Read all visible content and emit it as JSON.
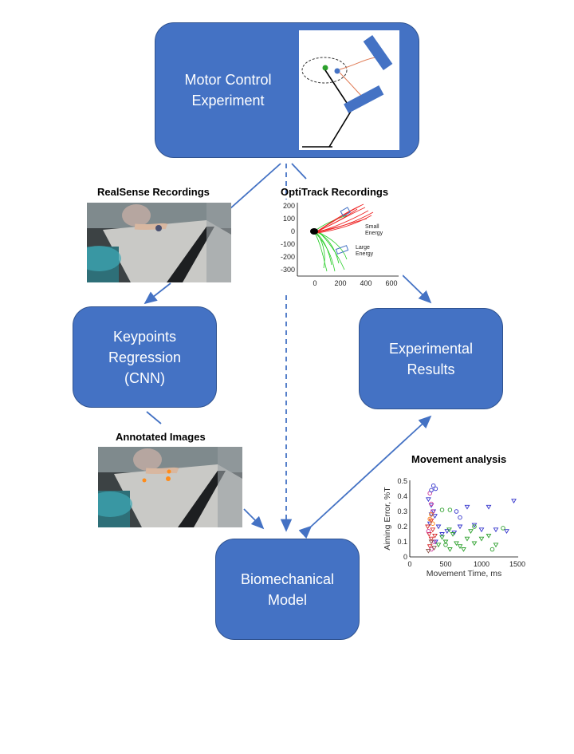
{
  "boxes": {
    "motor": "Motor Control\nExperiment",
    "keypoints": "Keypoints\nRegression\n(CNN)",
    "results": "Experimental\nResults",
    "biomech": "Biomechanical\nModel"
  },
  "captions": {
    "realsense": "RealSense Recordings",
    "optitrack": "OptiTrack Recordings",
    "annotated": "Annotated Images",
    "movement": "Movement analysis"
  },
  "optitrack_plot": {
    "y_ticks": [
      "200",
      "100",
      "0",
      "-100",
      "-200",
      "-300"
    ],
    "x_ticks": [
      "0",
      "200",
      "400",
      "600"
    ],
    "label_small": "Small\nEnergy",
    "label_large": "Large\nEnergy"
  },
  "chart_data": {
    "type": "scatter",
    "title": "Movement analysis",
    "xlabel": "Movement Time, ms",
    "ylabel": "Aiming Error, %T",
    "xlim": [
      0,
      1500
    ],
    "ylim": [
      0,
      0.5
    ],
    "x_ticks": [
      "0",
      "500",
      "1000",
      "1500"
    ],
    "y_ticks": [
      "0",
      "0.1",
      "0.2",
      "0.3",
      "0.4",
      "0.5"
    ],
    "series": [
      {
        "color": "#3333cc",
        "marker": "triangle-down",
        "points": [
          [
            260,
            0.38
          ],
          [
            300,
            0.34
          ],
          [
            330,
            0.3
          ],
          [
            350,
            0.27
          ],
          [
            280,
            0.22
          ],
          [
            400,
            0.2
          ],
          [
            520,
            0.17
          ],
          [
            620,
            0.16
          ],
          [
            700,
            0.2
          ],
          [
            800,
            0.33
          ],
          [
            900,
            0.21
          ],
          [
            1000,
            0.18
          ],
          [
            1100,
            0.33
          ],
          [
            1200,
            0.18
          ],
          [
            1350,
            0.17
          ],
          [
            1450,
            0.37
          ],
          [
            300,
            0.28
          ],
          [
            360,
            0.1
          ],
          [
            450,
            0.15
          ]
        ]
      },
      {
        "color": "#2ca02c",
        "marker": "triangle-down",
        "points": [
          [
            450,
            0.13
          ],
          [
            500,
            0.1
          ],
          [
            560,
            0.05
          ],
          [
            600,
            0.15
          ],
          [
            650,
            0.09
          ],
          [
            700,
            0.07
          ],
          [
            750,
            0.05
          ],
          [
            800,
            0.12
          ],
          [
            850,
            0.17
          ],
          [
            900,
            0.09
          ],
          [
            1000,
            0.12
          ],
          [
            1100,
            0.14
          ],
          [
            400,
            0.08
          ],
          [
            550,
            0.18
          ],
          [
            1200,
            0.08
          ]
        ]
      },
      {
        "color": "#d62728",
        "marker": "triangle-down",
        "points": [
          [
            250,
            0.2
          ],
          [
            270,
            0.15
          ],
          [
            300,
            0.12
          ],
          [
            320,
            0.18
          ],
          [
            280,
            0.07
          ],
          [
            350,
            0.14
          ],
          [
            300,
            0.24
          ]
        ]
      },
      {
        "color": "#cc3399",
        "marker": "circle",
        "points": [
          [
            280,
            0.42
          ],
          [
            300,
            0.35
          ],
          [
            320,
            0.3
          ],
          [
            260,
            0.17
          ],
          [
            340,
            0.1
          ],
          [
            300,
            0.05
          ]
        ]
      },
      {
        "color": "#3333cc",
        "marker": "circle",
        "points": [
          [
            330,
            0.47
          ],
          [
            360,
            0.45
          ],
          [
            300,
            0.44
          ],
          [
            650,
            0.3
          ],
          [
            700,
            0.26
          ]
        ]
      },
      {
        "color": "#2ca02c",
        "marker": "circle",
        "points": [
          [
            450,
            0.31
          ],
          [
            560,
            0.31
          ],
          [
            900,
            0.2
          ],
          [
            1150,
            0.05
          ],
          [
            1300,
            0.19
          ],
          [
            500,
            0.08
          ]
        ]
      },
      {
        "color": "#8c564b",
        "marker": "triangle-down",
        "points": [
          [
            260,
            0.04
          ],
          [
            300,
            0.1
          ],
          [
            340,
            0.06
          ]
        ]
      },
      {
        "color": "#ff7f0e",
        "marker": "circle",
        "points": [
          [
            280,
            0.25
          ],
          [
            320,
            0.22
          ],
          [
            300,
            0.28
          ]
        ]
      }
    ]
  }
}
